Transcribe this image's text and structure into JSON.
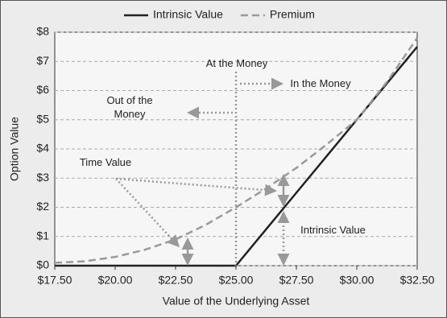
{
  "chart_data": {
    "type": "line",
    "legend": "top",
    "x_label": "Value of the Underlying Asset",
    "y_label": "Option Value",
    "x": [
      17.5,
      18.75,
      20,
      21.25,
      22.5,
      23.75,
      25,
      26.25,
      27.5,
      28.75,
      30,
      31.25,
      32.5
    ],
    "series": [
      {
        "name": "Intrinsic Value",
        "color": "#222222",
        "dash": "solid",
        "values": [
          0,
          0,
          0,
          0,
          0,
          0,
          0,
          1.25,
          2.5,
          3.75,
          5,
          6.25,
          7.5
        ]
      },
      {
        "name": "Premium",
        "color": "#9a9a9a",
        "dash": "dashed",
        "values": [
          0.1,
          0.15,
          0.3,
          0.55,
          0.9,
          1.4,
          2.0,
          2.65,
          3.35,
          4.15,
          5.0,
          6.3,
          7.8
        ]
      }
    ],
    "xlim": [
      17.5,
      32.5
    ],
    "xticks": [
      {
        "value": 17.5,
        "label": "$17.50"
      },
      {
        "value": 20,
        "label": "$20.00"
      },
      {
        "value": 22.5,
        "label": "$22.50"
      },
      {
        "value": 25,
        "label": "$25.00"
      },
      {
        "value": 27.5,
        "label": "$27.50"
      },
      {
        "value": 30,
        "label": "$30.00"
      },
      {
        "value": 32.5,
        "label": "$32.50"
      }
    ],
    "ylim": [
      0,
      8
    ],
    "yticks": [
      {
        "value": 0,
        "label": "$0"
      },
      {
        "value": 1,
        "label": "$1"
      },
      {
        "value": 2,
        "label": "$2"
      },
      {
        "value": 3,
        "label": "$3"
      },
      {
        "value": 4,
        "label": "$4"
      },
      {
        "value": 5,
        "label": "$5"
      },
      {
        "value": 6,
        "label": "$6"
      },
      {
        "value": 7,
        "label": "$7"
      },
      {
        "value": 8,
        "label": "$8"
      }
    ],
    "grid": true,
    "annotations": [
      "At the Money",
      "In the Money",
      "Out of the Money",
      "Time Value",
      "Intrinsic Value"
    ]
  }
}
